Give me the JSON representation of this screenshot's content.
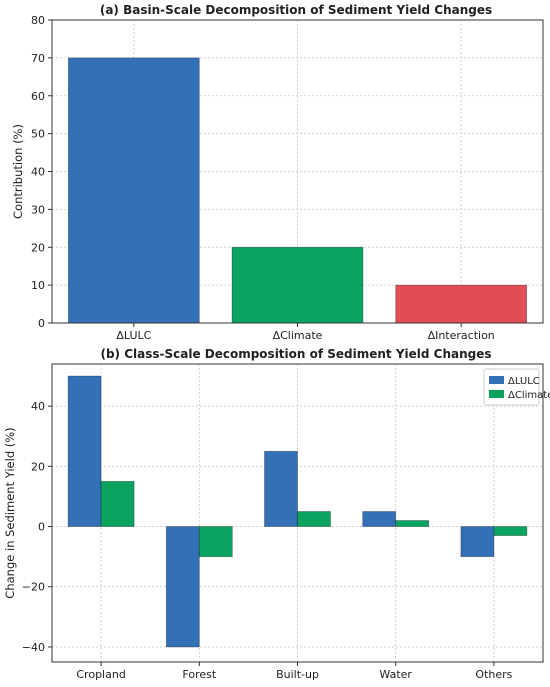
{
  "chart_data": [
    {
      "type": "bar",
      "title": "(a) Basin-Scale Decomposition of Sediment Yield Changes",
      "xlabel": "",
      "ylabel": "Contribution (%)",
      "categories": [
        "ΔLULC",
        "ΔClimate",
        "ΔInteraction"
      ],
      "values": [
        70,
        20,
        10
      ],
      "colors": [
        "#3470b5",
        "#0aa35f",
        "#e04d55"
      ],
      "ylim": [
        0,
        80
      ],
      "yticks": [
        0,
        10,
        20,
        30,
        40,
        50,
        60,
        70,
        80
      ],
      "grid": true
    },
    {
      "type": "bar",
      "title": "(b) Class-Scale Decomposition of Sediment Yield Changes",
      "xlabel": "",
      "ylabel": "Change in Sediment Yield (%)",
      "categories": [
        "Cropland",
        "Forest",
        "Built-up",
        "Water",
        "Others"
      ],
      "series": [
        {
          "name": "ΔLULC",
          "values": [
            50,
            -40,
            25,
            5,
            -10
          ],
          "color": "#3470b5"
        },
        {
          "name": "ΔClimate",
          "values": [
            15,
            -10,
            5,
            2,
            -3
          ],
          "color": "#0aa35f"
        }
      ],
      "ylim": [
        -45,
        54
      ],
      "yticks": [
        -40,
        -20,
        0,
        20,
        40
      ],
      "legend_position": "top-right",
      "grid": true
    }
  ]
}
